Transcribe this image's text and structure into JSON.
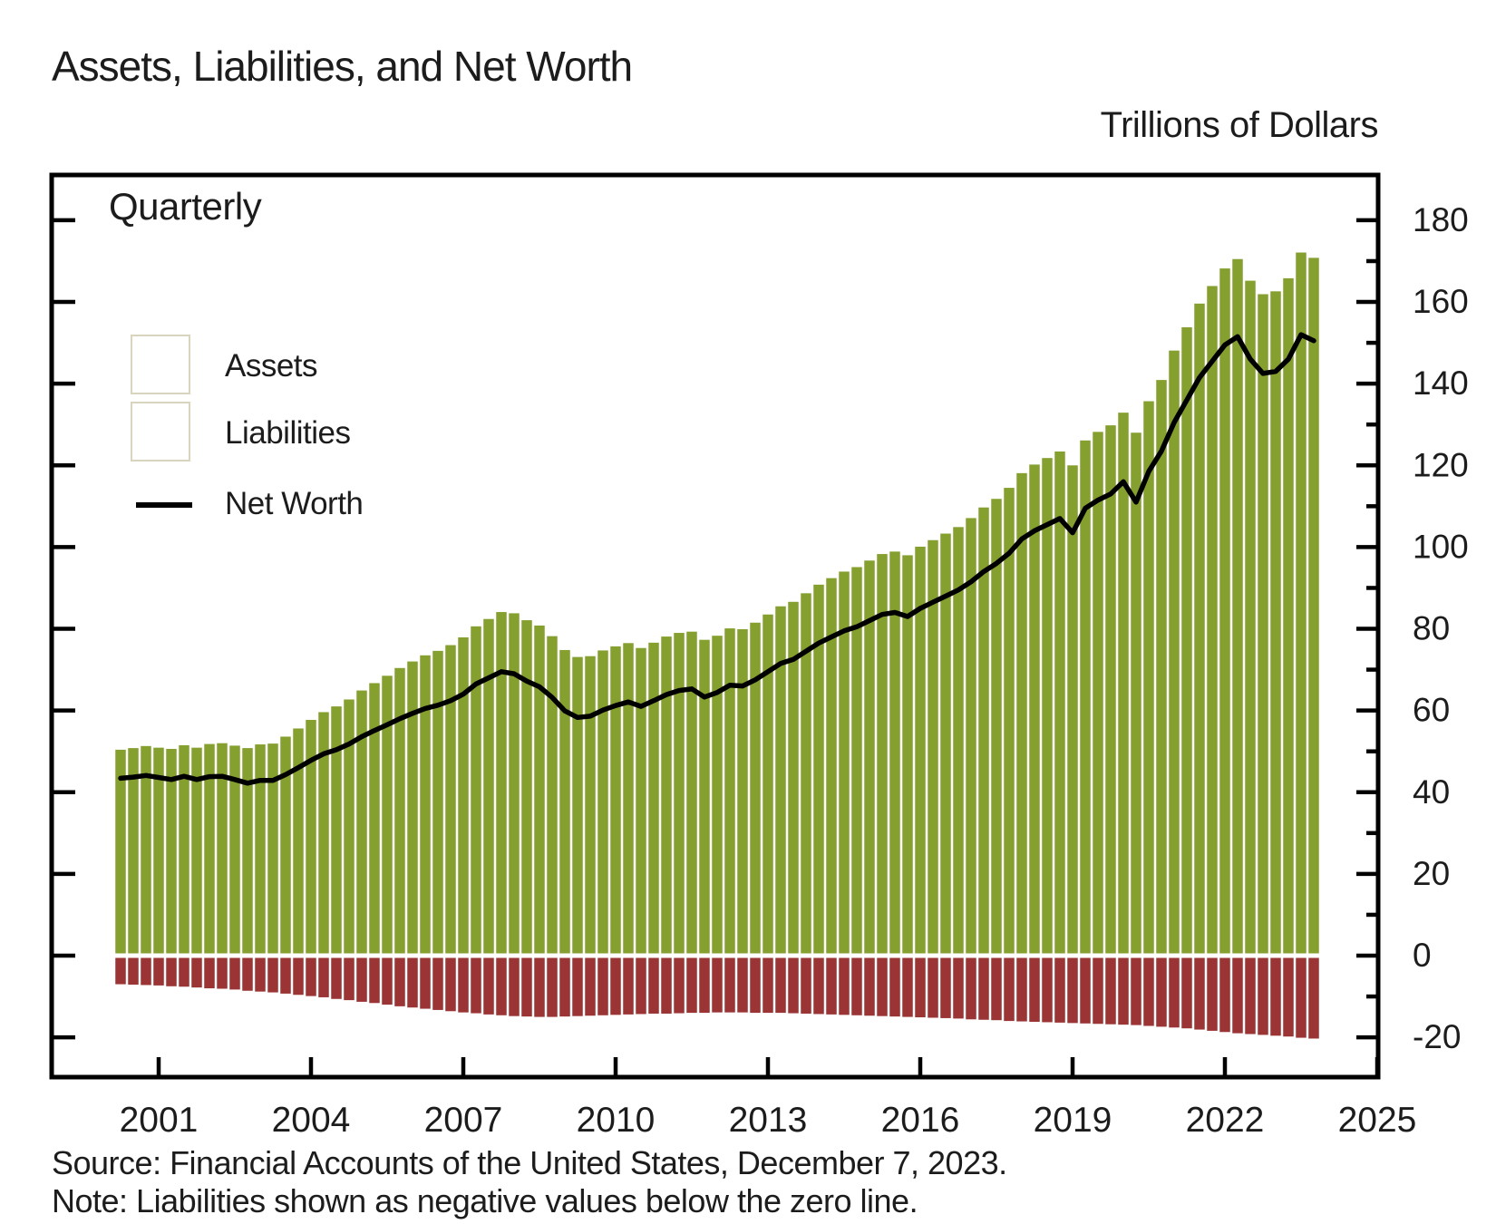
{
  "title": "Assets, Liabilities, and Net Worth",
  "units_label": "Trillions of Dollars",
  "frequency_label": "Quarterly",
  "legend": {
    "assets": "Assets",
    "liabilities": "Liabilities",
    "net_worth": "Net Worth"
  },
  "source": "Source: Financial Accounts of the United States, December 7, 2023.",
  "note": "Note: Liabilities shown as negative values below the zero line.",
  "colors": {
    "assets": "#86A02F",
    "liabilities": "#9B3535",
    "net_worth": "#000000",
    "frame": "#000000",
    "text": "#1c1c1c"
  },
  "chart_data": {
    "type": "bar",
    "subtype": "stacked-positive-negative-bars-with-line",
    "title": "Assets, Liabilities, and Net Worth",
    "ylabel": "Trillions of Dollars",
    "frequency": "Quarterly",
    "start_quarter": "2000Q1",
    "end_quarter": "2023Q3",
    "x_tick_years": [
      2001,
      2004,
      2007,
      2010,
      2013,
      2016,
      2019,
      2022,
      2025
    ],
    "y_axis": {
      "ylim": [
        -29.7,
        191
      ],
      "major_tick_step": 20,
      "minor_tick_step": 10,
      "major_tick_labels": [
        180,
        160,
        140,
        120,
        100,
        80,
        60,
        40,
        20,
        0,
        -20
      ]
    },
    "grid": false,
    "legend_position": "upper-left-inside",
    "quarters": [
      "2000Q1",
      "2000Q2",
      "2000Q3",
      "2000Q4",
      "2001Q1",
      "2001Q2",
      "2001Q3",
      "2001Q4",
      "2002Q1",
      "2002Q2",
      "2002Q3",
      "2002Q4",
      "2003Q1",
      "2003Q2",
      "2003Q3",
      "2003Q4",
      "2004Q1",
      "2004Q2",
      "2004Q3",
      "2004Q4",
      "2005Q1",
      "2005Q2",
      "2005Q3",
      "2005Q4",
      "2006Q1",
      "2006Q2",
      "2006Q3",
      "2006Q4",
      "2007Q1",
      "2007Q2",
      "2007Q3",
      "2007Q4",
      "2008Q1",
      "2008Q2",
      "2008Q3",
      "2008Q4",
      "2009Q1",
      "2009Q2",
      "2009Q3",
      "2009Q4",
      "2010Q1",
      "2010Q2",
      "2010Q3",
      "2010Q4",
      "2011Q1",
      "2011Q2",
      "2011Q3",
      "2011Q4",
      "2012Q1",
      "2012Q2",
      "2012Q3",
      "2012Q4",
      "2013Q1",
      "2013Q2",
      "2013Q3",
      "2013Q4",
      "2014Q1",
      "2014Q2",
      "2014Q3",
      "2014Q4",
      "2015Q1",
      "2015Q2",
      "2015Q3",
      "2015Q4",
      "2016Q1",
      "2016Q2",
      "2016Q3",
      "2016Q4",
      "2017Q1",
      "2017Q2",
      "2017Q3",
      "2017Q4",
      "2018Q1",
      "2018Q2",
      "2018Q3",
      "2018Q4",
      "2019Q1",
      "2019Q2",
      "2019Q3",
      "2019Q4",
      "2020Q1",
      "2020Q2",
      "2020Q3",
      "2020Q4",
      "2021Q1",
      "2021Q2",
      "2021Q3",
      "2021Q4",
      "2022Q1",
      "2022Q2",
      "2022Q3",
      "2022Q4",
      "2023Q1",
      "2023Q2",
      "2023Q3"
    ],
    "series": [
      {
        "name": "Assets",
        "type": "bar",
        "color": "#86A02F",
        "values": [
          50.4,
          50.8,
          51.3,
          50.9,
          50.6,
          51.5,
          50.9,
          51.8,
          52.0,
          51.4,
          50.8,
          51.7,
          51.9,
          53.6,
          55.6,
          57.7,
          59.6,
          61.0,
          62.7,
          64.9,
          66.7,
          68.5,
          70.4,
          72.0,
          73.5,
          74.6,
          76.0,
          77.9,
          80.6,
          82.4,
          84.1,
          83.8,
          82.1,
          80.8,
          78.2,
          74.8,
          73.1,
          73.3,
          74.7,
          75.7,
          76.5,
          75.3,
          76.6,
          78.1,
          79.0,
          79.3,
          77.3,
          78.3,
          80.1,
          79.9,
          81.5,
          83.5,
          85.5,
          86.6,
          88.7,
          90.8,
          92.4,
          94.0,
          95.1,
          96.7,
          98.3,
          98.9,
          98.0,
          100.1,
          101.7,
          103.3,
          104.9,
          107.1,
          109.7,
          111.8,
          114.5,
          118.1,
          120.2,
          121.8,
          123.4,
          120.0,
          126.1,
          128.2,
          129.8,
          132.9,
          128.0,
          135.7,
          140.9,
          148.1,
          153.8,
          159.6,
          163.9,
          168.2,
          170.5,
          165.2,
          161.9,
          162.6,
          165.8,
          172.1,
          170.8
        ]
      },
      {
        "name": "Liabilities",
        "type": "bar",
        "color": "#9B3535",
        "values": [
          -7.0,
          -7.1,
          -7.2,
          -7.3,
          -7.5,
          -7.6,
          -7.8,
          -8.0,
          -8.1,
          -8.3,
          -8.6,
          -8.8,
          -9.0,
          -9.3,
          -9.6,
          -9.9,
          -10.2,
          -10.6,
          -10.9,
          -11.3,
          -11.6,
          -12.0,
          -12.4,
          -12.7,
          -13.0,
          -13.3,
          -13.6,
          -13.9,
          -14.1,
          -14.4,
          -14.6,
          -14.8,
          -14.9,
          -15.0,
          -15.0,
          -14.9,
          -14.8,
          -14.7,
          -14.6,
          -14.5,
          -14.4,
          -14.3,
          -14.2,
          -14.2,
          -14.1,
          -14.0,
          -14.0,
          -13.9,
          -13.9,
          -13.9,
          -14.0,
          -14.0,
          -14.0,
          -14.1,
          -14.2,
          -14.3,
          -14.4,
          -14.5,
          -14.6,
          -14.7,
          -14.8,
          -14.9,
          -15.0,
          -15.1,
          -15.2,
          -15.3,
          -15.4,
          -15.6,
          -15.7,
          -15.8,
          -16.0,
          -16.1,
          -16.2,
          -16.3,
          -16.4,
          -16.5,
          -16.6,
          -16.7,
          -16.8,
          -16.9,
          -17.0,
          -17.2,
          -17.4,
          -17.6,
          -17.8,
          -18.1,
          -18.4,
          -18.7,
          -19.0,
          -19.2,
          -19.4,
          -19.6,
          -19.8,
          -20.1,
          -20.3
        ]
      },
      {
        "name": "Net Worth",
        "type": "line",
        "color": "#000000",
        "values": [
          43.4,
          43.7,
          44.1,
          43.6,
          43.1,
          43.9,
          43.1,
          43.8,
          43.9,
          43.1,
          42.2,
          42.9,
          42.9,
          44.3,
          46.0,
          47.8,
          49.4,
          50.4,
          51.8,
          53.6,
          55.1,
          56.5,
          58.0,
          59.3,
          60.5,
          61.3,
          62.4,
          64.0,
          66.5,
          68.0,
          69.5,
          69.0,
          67.2,
          65.8,
          63.2,
          59.9,
          58.3,
          58.6,
          60.1,
          61.2,
          62.1,
          61.0,
          62.4,
          63.9,
          64.9,
          65.3,
          63.3,
          64.4,
          66.2,
          66.0,
          67.5,
          69.5,
          71.5,
          72.5,
          74.5,
          76.5,
          78.0,
          79.5,
          80.5,
          82.0,
          83.5,
          84.0,
          83.0,
          85.0,
          86.5,
          88.0,
          89.5,
          91.5,
          94.0,
          96.0,
          98.5,
          102.0,
          104.0,
          105.5,
          107.0,
          103.5,
          109.5,
          111.5,
          113.0,
          116.0,
          111.0,
          118.5,
          123.5,
          130.5,
          136.0,
          141.5,
          145.5,
          149.5,
          151.5,
          146.0,
          142.5,
          143.0,
          146.0,
          152.0,
          150.5
        ]
      }
    ]
  }
}
